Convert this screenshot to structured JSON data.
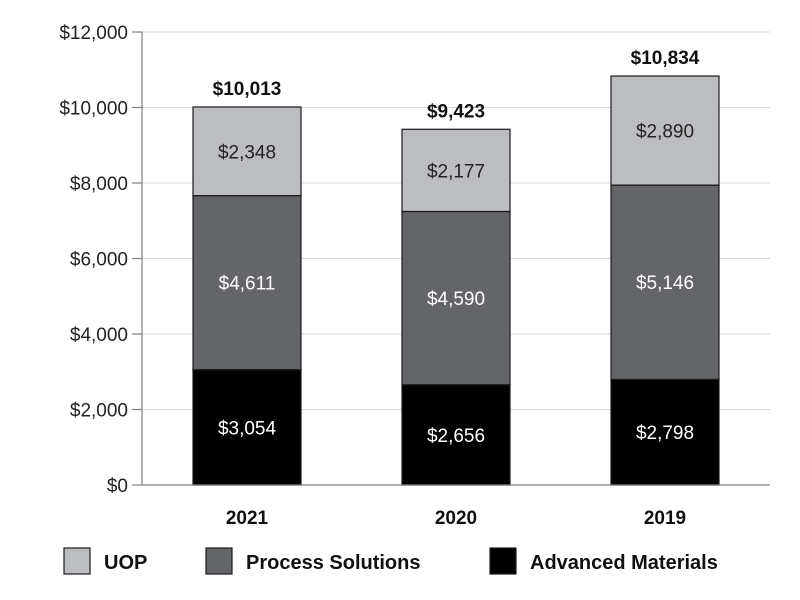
{
  "chart_data": {
    "type": "bar",
    "stacked": true,
    "categories": [
      "2021",
      "2020",
      "2019"
    ],
    "series": [
      {
        "name": "Advanced Materials",
        "values": [
          3054,
          2656,
          2798
        ],
        "value_labels": [
          "$3,054",
          "$2,656",
          "$2,798"
        ],
        "color": "#000000",
        "label_color": "#ffffff"
      },
      {
        "name": "Process Solutions",
        "values": [
          4611,
          4590,
          5146
        ],
        "value_labels": [
          "$4,611",
          "$4,590",
          "$5,146"
        ],
        "color": "#636569",
        "label_color": "#ffffff"
      },
      {
        "name": "UOP",
        "values": [
          2348,
          2177,
          2890
        ],
        "value_labels": [
          "$2,348",
          "$2,177",
          "$2,890"
        ],
        "color": "#bcbdc0",
        "label_color": "#222222"
      }
    ],
    "totals": [
      10013,
      9423,
      10834
    ],
    "total_labels": [
      "$10,013",
      "$9,423",
      "$10,834"
    ],
    "y_ticks": [
      0,
      2000,
      4000,
      6000,
      8000,
      10000,
      12000
    ],
    "y_tick_labels": [
      "$0",
      "$2,000",
      "$4,000",
      "$6,000",
      "$8,000",
      "$10,000",
      "$12,000"
    ],
    "ylim": [
      0,
      12000
    ],
    "grid": true,
    "legend": {
      "placement": "bottom",
      "order": [
        "UOP",
        "Process Solutions",
        "Advanced Materials"
      ]
    }
  }
}
